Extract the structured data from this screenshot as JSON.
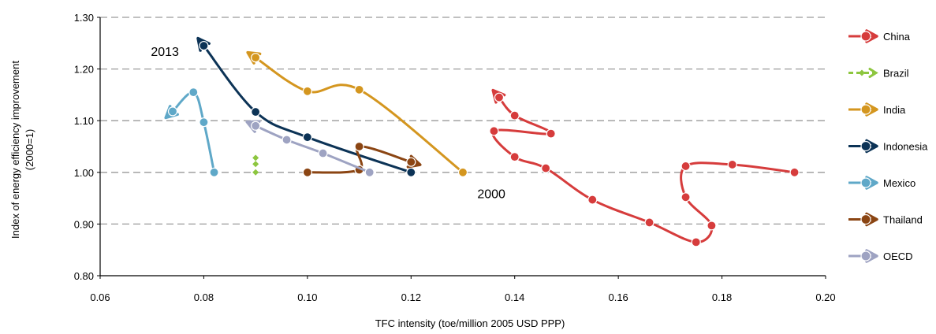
{
  "chart_data": {
    "type": "line",
    "xlabel": "TFC intensity (toe/million 2005 USD PPP)",
    "ylabel_line1": "Index of energy efficiency improvement",
    "ylabel_line2": "(2000=1)",
    "xlim": [
      0.06,
      0.2
    ],
    "ylim": [
      0.8,
      1.3
    ],
    "x_ticks": [
      "0.06",
      "0.08",
      "0.10",
      "0.12",
      "0.14",
      "0.16",
      "0.18",
      "0.20"
    ],
    "y_ticks": [
      "0.80",
      "0.90",
      "1.00",
      "1.10",
      "1.20",
      "1.30"
    ],
    "grid": "horizontal dashed",
    "legend_position": "right",
    "annotations": [
      {
        "text": "2013",
        "x": 0.0725,
        "y": 1.225
      },
      {
        "text": "2000",
        "x": 0.1355,
        "y": 0.95
      }
    ],
    "series": [
      {
        "name": "China",
        "color": "#D63C3C",
        "marker": "circle",
        "points": [
          [
            0.194,
            1.0
          ],
          [
            0.182,
            1.015
          ],
          [
            0.173,
            1.012
          ],
          [
            0.173,
            0.952
          ],
          [
            0.178,
            0.897
          ],
          [
            0.175,
            0.865
          ],
          [
            0.166,
            0.903
          ],
          [
            0.155,
            0.947
          ],
          [
            0.146,
            1.008
          ],
          [
            0.14,
            1.03
          ],
          [
            0.136,
            1.08
          ],
          [
            0.147,
            1.075
          ],
          [
            0.14,
            1.11
          ],
          [
            0.137,
            1.145
          ]
        ]
      },
      {
        "name": "Brazil",
        "color": "#8DC63F",
        "marker": "diamond",
        "points": [
          [
            0.09,
            1.0
          ],
          [
            0.09,
            1.016
          ],
          [
            0.09,
            1.028
          ]
        ]
      },
      {
        "name": "India",
        "color": "#D4961F",
        "marker": "circle",
        "points": [
          [
            0.13,
            1.0
          ],
          [
            0.11,
            1.16
          ],
          [
            0.1,
            1.157
          ],
          [
            0.09,
            1.222
          ]
        ]
      },
      {
        "name": "Indonesia",
        "color": "#0C3356",
        "marker": "circle",
        "points": [
          [
            0.12,
            1.0
          ],
          [
            0.1,
            1.068
          ],
          [
            0.09,
            1.117
          ],
          [
            0.08,
            1.245
          ]
        ]
      },
      {
        "name": "Mexico",
        "color": "#5FA8C8",
        "marker": "circle",
        "points": [
          [
            0.082,
            1.0
          ],
          [
            0.08,
            1.097
          ],
          [
            0.078,
            1.155
          ],
          [
            0.074,
            1.118
          ]
        ]
      },
      {
        "name": "Thailand",
        "color": "#8B4513",
        "marker": "circle",
        "points": [
          [
            0.1,
            1.0
          ],
          [
            0.11,
            1.005
          ],
          [
            0.11,
            1.05
          ],
          [
            0.12,
            1.02
          ]
        ]
      },
      {
        "name": "OECD",
        "color": "#9EA3C2",
        "marker": "circle",
        "points": [
          [
            0.112,
            1.0
          ],
          [
            0.103,
            1.037
          ],
          [
            0.096,
            1.063
          ],
          [
            0.09,
            1.09
          ]
        ]
      }
    ]
  }
}
